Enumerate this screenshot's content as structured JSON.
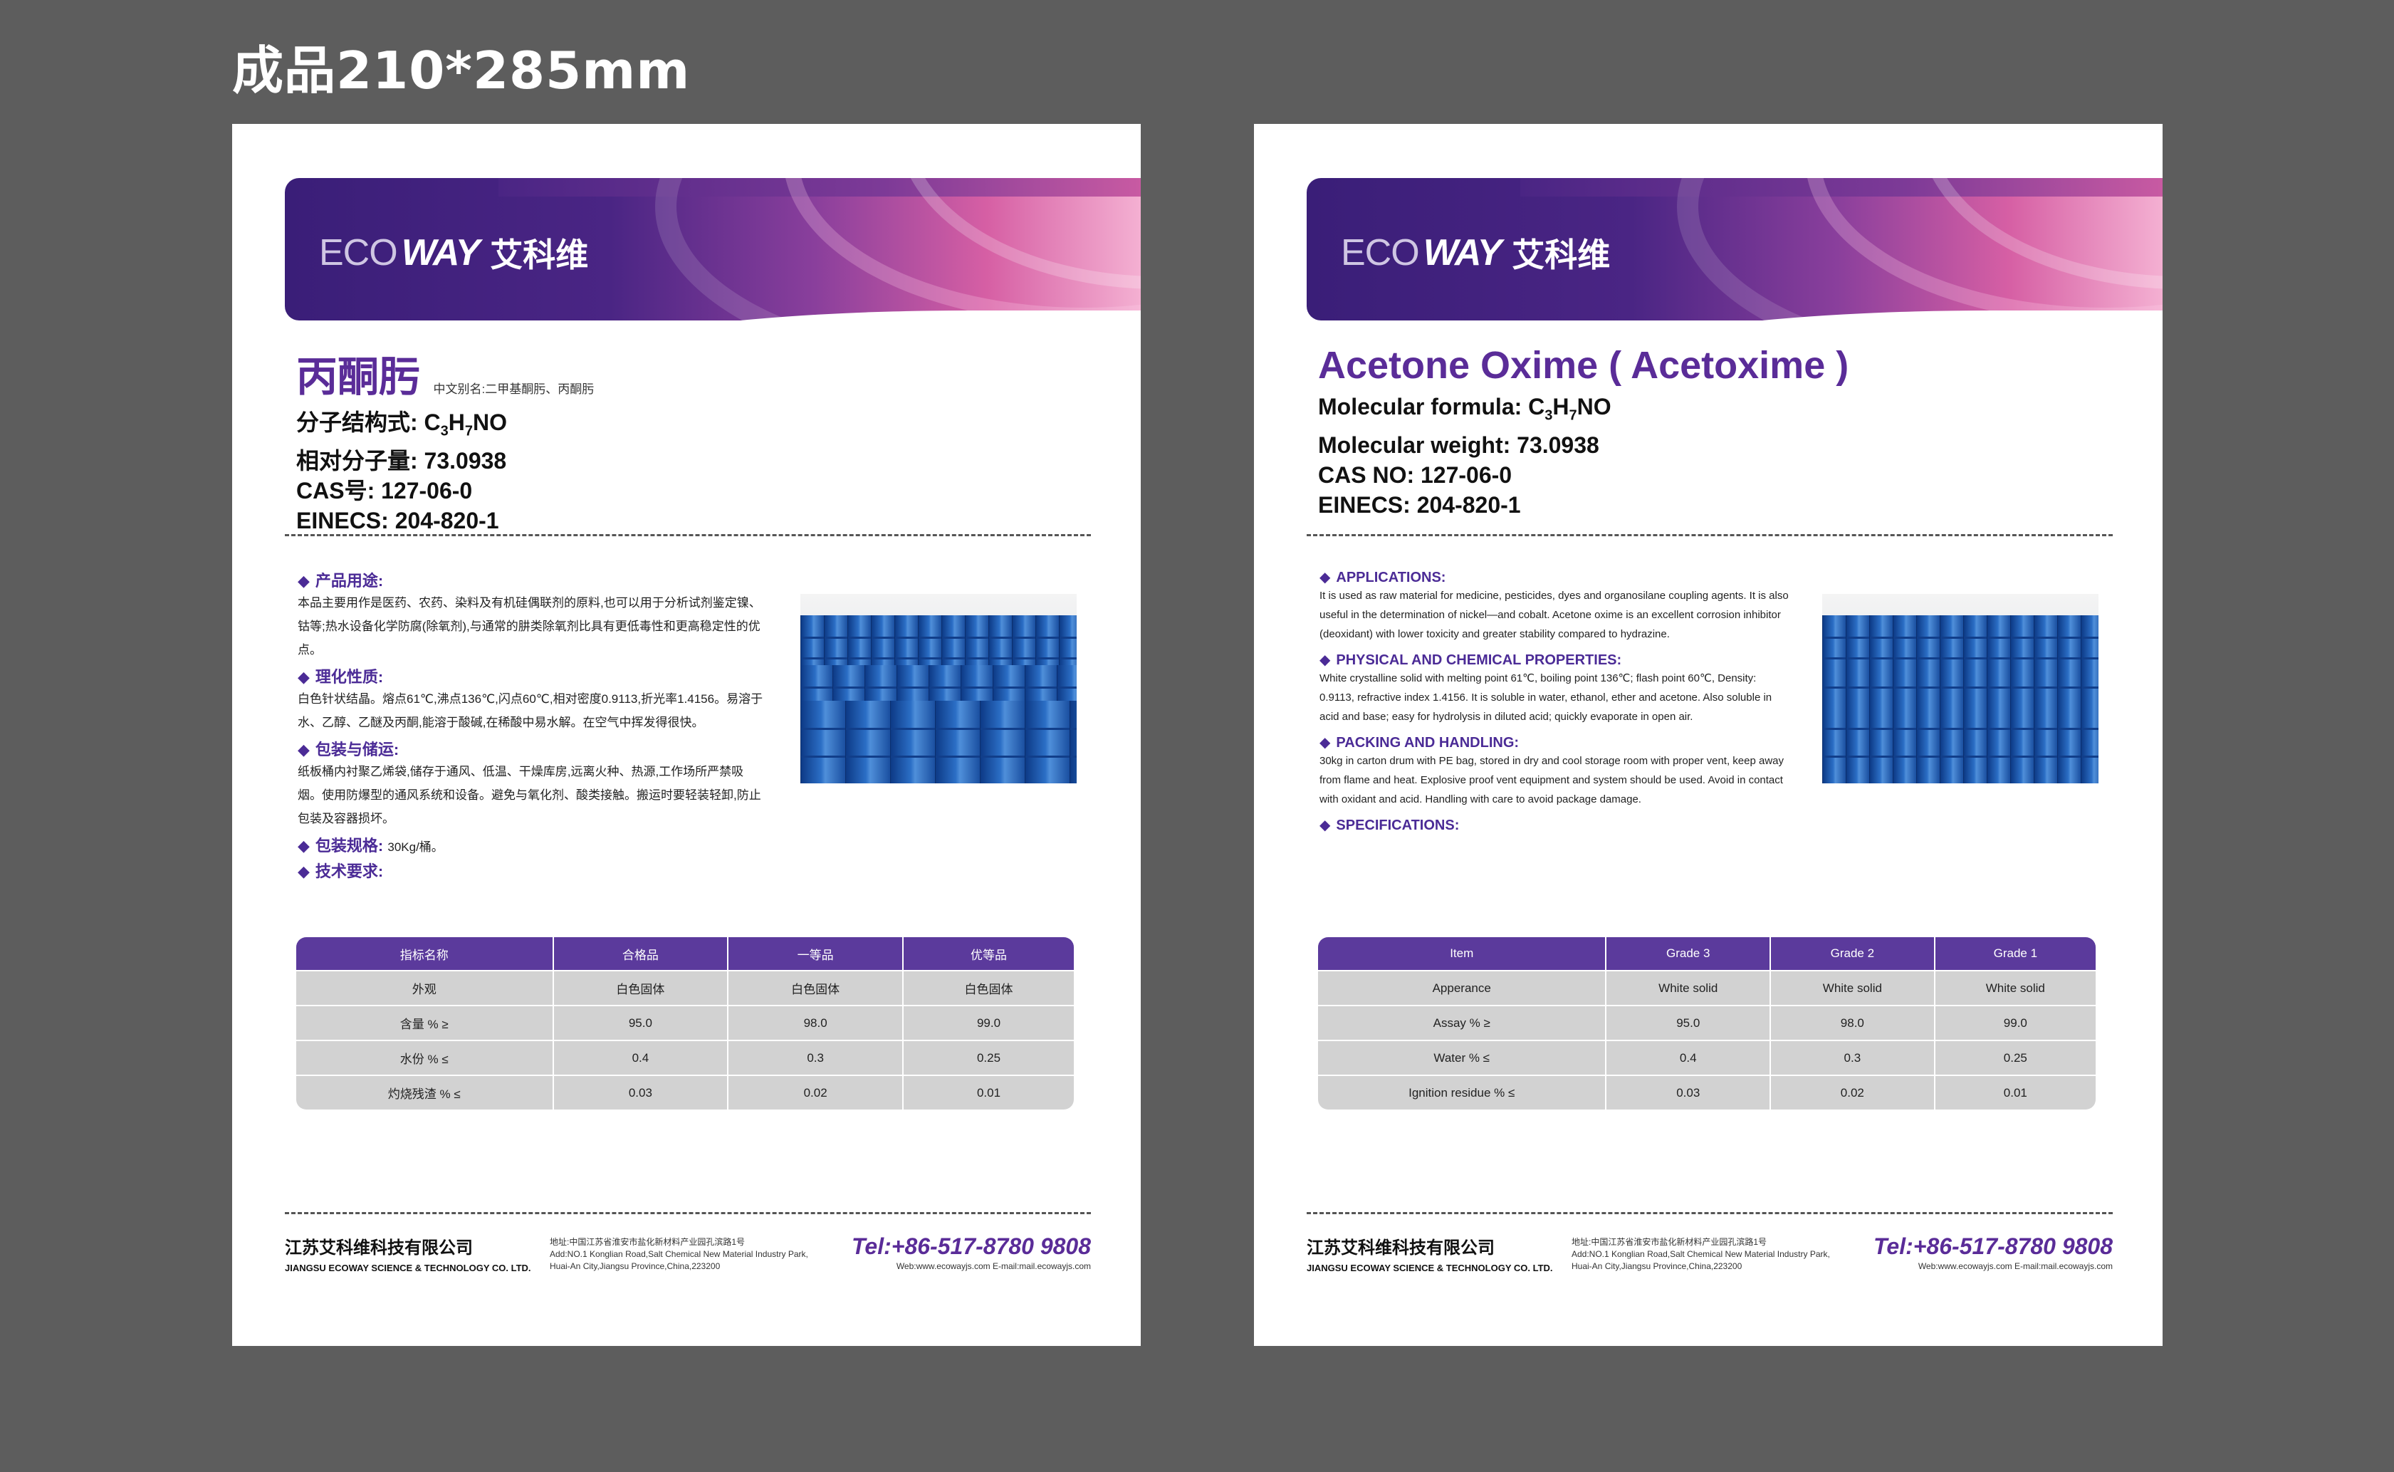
{
  "top_label": "成品210*285mm",
  "logo": {
    "eco": "ECO",
    "way": "WAY",
    "cn": "艾科维"
  },
  "left": {
    "title": "丙酮肟",
    "alias": "中文别名:二甲基酮肟、丙酮肟",
    "formula_prefix": "分子结构式: C",
    "formula_3": "3",
    "formula_h": "H",
    "formula_7": "7",
    "formula_no": "NO",
    "weight": "相对分子量: 73.0938",
    "cas": "CAS号: 127-06-0",
    "einecs": "EINECS: 204-820-1",
    "sections": [
      {
        "head": "产品用途:",
        "text": "本品主要用作是医药、农药、染料及有机硅偶联剂的原料,也可以用于分析试剂鉴定镍、钴等;热水设备化学防腐(除氧剂),与通常的肼类除氧剂比具有更低毒性和更高稳定性的优点。"
      },
      {
        "head": "理化性质:",
        "text": "白色针状结晶。熔点61℃,沸点136℃,闪点60℃,相对密度0.9113,折光率1.4156。易溶于水、乙醇、乙醚及丙酮,能溶于酸碱,在稀酸中易水解。在空气中挥发得很快。"
      },
      {
        "head": "包装与储运:",
        "text": "纸板桶内衬聚乙烯袋,储存于通风、低温、干燥库房,远离火种、热源,工作场所严禁吸烟。使用防爆型的通风系统和设备。避免与氧化剂、酸类接触。搬运时要轻装轻卸,防止包装及容器损坏。"
      },
      {
        "head": "包装规格:",
        "inline": "30Kg/桶。"
      },
      {
        "head": "技术要求:"
      }
    ],
    "table": {
      "headers": [
        "指标名称",
        "合格品",
        "一等品",
        "优等品"
      ],
      "rows": [
        [
          "外观",
          "白色固体",
          "白色固体",
          "白色固体"
        ],
        [
          "含量 % ≥",
          "95.0",
          "98.0",
          "99.0"
        ],
        [
          "水份 % ≤",
          "0.4",
          "0.3",
          "0.25"
        ],
        [
          "灼烧残渣 % ≤",
          "0.03",
          "0.02",
          "0.01"
        ]
      ]
    }
  },
  "right": {
    "title": "Acetone Oxime ( Acetoxime )",
    "formula_prefix": "Molecular formula: C",
    "formula_3": "3",
    "formula_h": "H",
    "formula_7": "7",
    "formula_no": "NO",
    "weight": "Molecular weight: 73.0938",
    "cas": "CAS NO: 127-06-0",
    "einecs": "EINECS: 204-820-1",
    "sections": [
      {
        "head": "APPLICATIONS:",
        "text": "It is used as raw material for medicine, pesticides, dyes and organosilane coupling agents. It is also useful in the determination of nickel—and cobalt. Acetone oxime is an excellent corrosion inhibitor (deoxidant) with lower toxicity and greater stability compared to hydrazine."
      },
      {
        "head": "PHYSICAL AND CHEMICAL PROPERTIES:",
        "text": "White crystalline solid with melting point 61℃, boiling point 136℃; flash point 60℃, Density: 0.9113, refractive index 1.4156. It is soluble in water, ethanol, ether and acetone. Also soluble in acid and base; easy for hydrolysis in diluted acid; quickly evaporate in open air."
      },
      {
        "head": "PACKING AND HANDLING:",
        "text": "30kg in carton drum with PE bag, stored in dry and cool storage room with proper vent, keep away from flame and heat. Explosive proof vent equipment and system should be used. Avoid in contact with oxidant and acid. Handling with care to avoid package damage."
      },
      {
        "head": "SPECIFICATIONS:"
      }
    ],
    "table": {
      "headers": [
        "Item",
        "Grade 3",
        "Grade 2",
        "Grade 1"
      ],
      "rows": [
        [
          "Apperance",
          "White solid",
          "White solid",
          "White solid"
        ],
        [
          "Assay % ≥",
          "95.0",
          "98.0",
          "99.0"
        ],
        [
          "Water % ≤",
          "0.4",
          "0.3",
          "0.25"
        ],
        [
          "Ignition residue % ≤",
          "0.03",
          "0.02",
          "0.01"
        ]
      ]
    }
  },
  "footer": {
    "company_cn": "江苏艾科维科技有限公司",
    "company_en": "JIANGSU ECOWAY SCIENCE & TECHNOLOGY CO. LTD.",
    "addr_cn": "地址:中国江苏省淮安市盐化新材料产业园孔滨路1号",
    "addr_en1": "Add:NO.1 Konglian Road,Salt Chemical New Material Industry Park,",
    "addr_en2": "Huai-An City,Jiangsu Province,China,223200",
    "tel": "Tel:+86-517-8780 9808",
    "web": "Web:www.ecowayjs.com  E-mail:mail.ecowayjs.com"
  }
}
